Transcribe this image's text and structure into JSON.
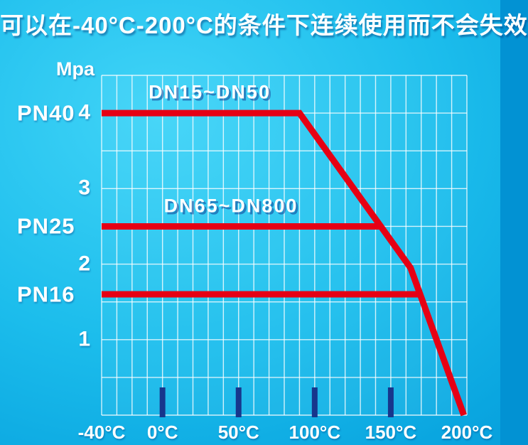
{
  "title": "可以在-40°C-200°C的条件下连续使用而不会失效",
  "colors": {
    "background_center": "#41d4f7",
    "background_edge": "#0292d3",
    "grid_line": "#ffffff",
    "curve_red": "#e60014",
    "tick_bar_navy": "#17368c",
    "text": "#ffffff"
  },
  "chart_data": {
    "type": "line",
    "unit_label": "Mpa",
    "x_range": [
      -40,
      200
    ],
    "y_range": [
      0,
      4.5
    ],
    "x_grid_step_degC": 10,
    "y_grid_step_mpa": 0.5,
    "grid": true,
    "legend_position": "none",
    "x_ticks": [
      {
        "t": -40,
        "label": "-40°C"
      },
      {
        "t": 0,
        "label": "0°C"
      },
      {
        "t": 50,
        "label": "50°C"
      },
      {
        "t": 100,
        "label": "100°C"
      },
      {
        "t": 150,
        "label": "150°C"
      },
      {
        "t": 200,
        "label": "200°C"
      }
    ],
    "y_ticks": [
      {
        "mpa": 4,
        "label": "4"
      },
      {
        "mpa": 3,
        "label": "3"
      },
      {
        "mpa": 2,
        "label": "2"
      },
      {
        "mpa": 1,
        "label": "1"
      }
    ],
    "pn_labels": [
      {
        "label": "PN40",
        "mpa": 4.0
      },
      {
        "label": "PN25",
        "mpa": 2.5
      },
      {
        "label": "PN16",
        "mpa": 1.6
      }
    ],
    "tick_bars_t": [
      0,
      50,
      100,
      150
    ],
    "series": [
      {
        "name": "PN40 DN15~DN50",
        "points": [
          [
            -40,
            4.0
          ],
          [
            90,
            4.0
          ],
          [
            163,
            1.95
          ],
          [
            198,
            0
          ]
        ]
      },
      {
        "name": "PN25 DN65~DN800",
        "points": [
          [
            -40,
            2.5
          ],
          [
            143,
            2.5
          ]
        ]
      },
      {
        "name": "PN16",
        "points": [
          [
            -40,
            1.6
          ],
          [
            169,
            1.6
          ]
        ]
      }
    ],
    "annotations": [
      {
        "text": "DN15~DN50",
        "t": 31,
        "mpa": 4.27
      },
      {
        "text": "DN65~DN800",
        "t": 45,
        "mpa": 2.77
      }
    ]
  }
}
